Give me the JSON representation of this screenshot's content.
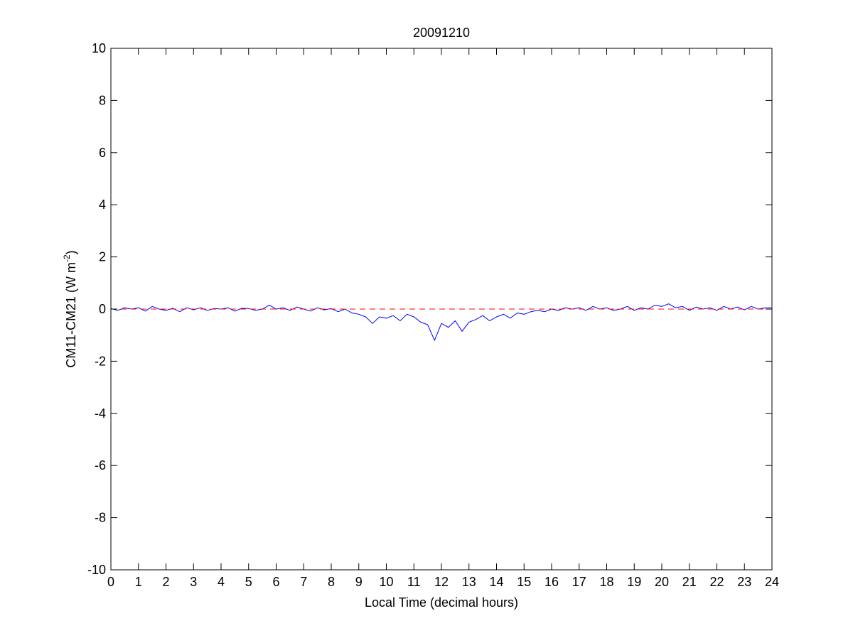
{
  "chart_data": {
    "type": "line",
    "title": "20091210",
    "xlabel": "Local Time (decimal hours)",
    "ylabel_main": "CM11-CM21 (W m",
    "ylabel_sup": "-2",
    "ylabel_end": ")",
    "xlim": [
      0,
      24
    ],
    "ylim": [
      -10,
      10
    ],
    "xticks": [
      0,
      1,
      2,
      3,
      4,
      5,
      6,
      7,
      8,
      9,
      10,
      11,
      12,
      13,
      14,
      15,
      16,
      17,
      18,
      19,
      20,
      21,
      22,
      23,
      24
    ],
    "yticks": [
      -10,
      -8,
      -6,
      -4,
      -2,
      0,
      2,
      4,
      6,
      8,
      10
    ],
    "grid": false,
    "series": [
      {
        "color": "#0000ff",
        "x_start": 0,
        "x_step": 0.25,
        "values": [
          0.02,
          -0.05,
          0.05,
          0.0,
          0.05,
          -0.08,
          0.1,
          0.0,
          -0.05,
          0.03,
          -0.1,
          0.05,
          -0.03,
          0.05,
          -0.05,
          0.02,
          0.0,
          0.05,
          -0.08,
          0.03,
          0.02,
          -0.05,
          0.0,
          0.15,
          0.0,
          0.05,
          -0.05,
          0.08,
          0.0,
          -0.08,
          0.05,
          -0.03,
          0.02,
          -0.1,
          0.0,
          -0.15,
          -0.2,
          -0.3,
          -0.55,
          -0.3,
          -0.35,
          -0.25,
          -0.45,
          -0.2,
          -0.3,
          -0.5,
          -0.6,
          -1.2,
          -0.55,
          -0.7,
          -0.45,
          -0.85,
          -0.5,
          -0.4,
          -0.25,
          -0.45,
          -0.3,
          -0.2,
          -0.35,
          -0.15,
          -0.2,
          -0.1,
          -0.05,
          -0.1,
          0.0,
          -0.05,
          0.05,
          0.0,
          0.05,
          -0.05,
          0.1,
          0.0,
          0.05,
          -0.05,
          0.0,
          0.1,
          -0.05,
          0.05,
          0.0,
          0.15,
          0.1,
          0.2,
          0.05,
          0.1,
          -0.05,
          0.08,
          0.0,
          0.05,
          -0.05,
          0.1,
          0.0,
          0.08,
          -0.03,
          0.1,
          0.0,
          0.05,
          0.05
        ]
      },
      {
        "color": "#ff0000",
        "style": "dashed",
        "x": [
          0,
          24
        ],
        "values": [
          0,
          0
        ]
      }
    ]
  }
}
